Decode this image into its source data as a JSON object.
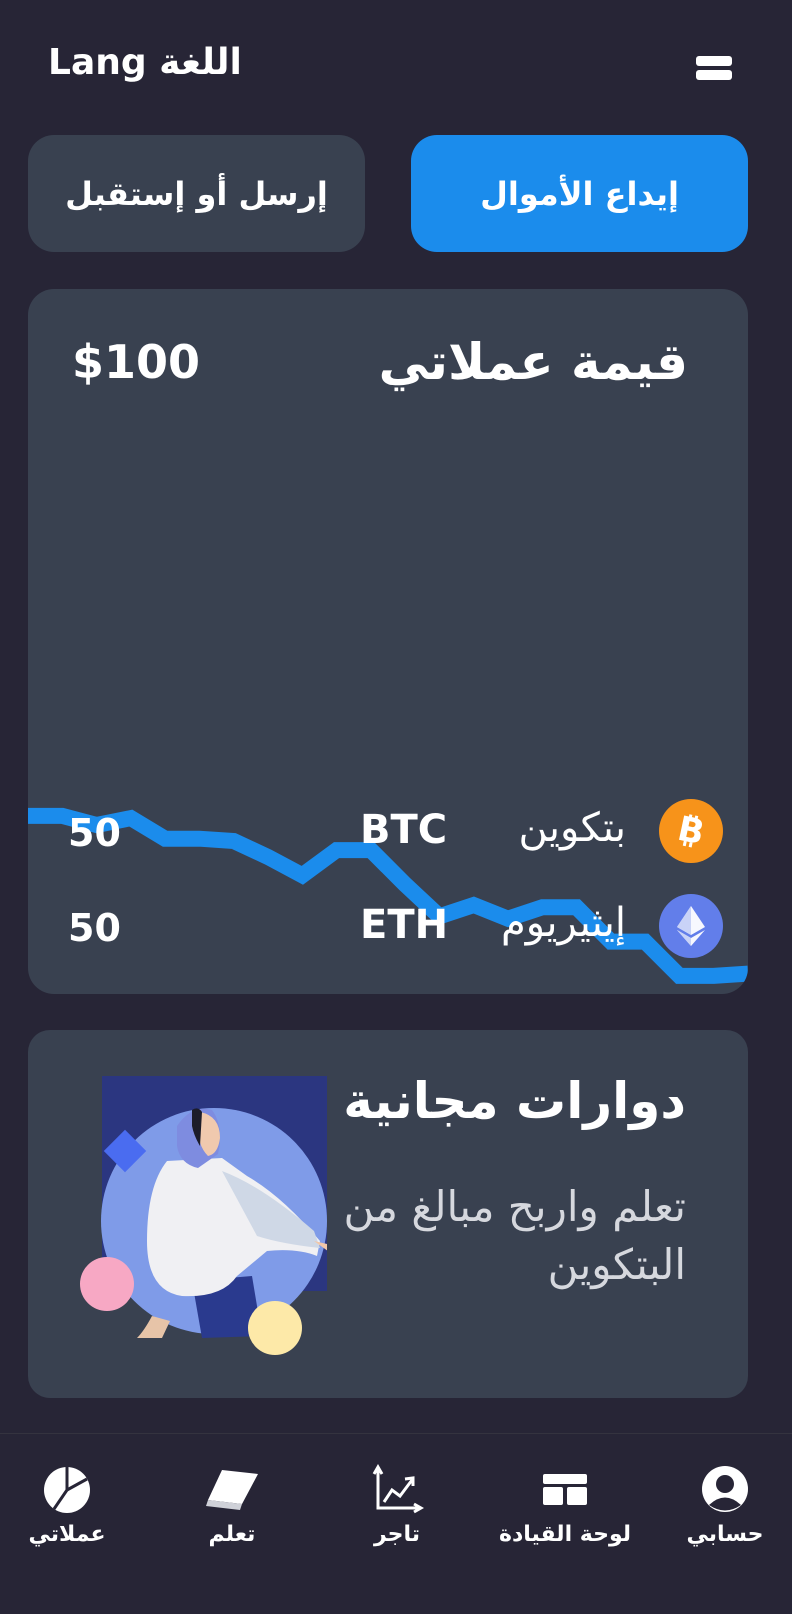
{
  "header": {
    "lang_label": "Lang  اللغة",
    "menu_icon": "hamburger-menu-icon"
  },
  "actions": {
    "send_receive_label": "إرسل أو إستقبل",
    "deposit_label": "إيداع الأموال"
  },
  "portfolio": {
    "title": "قيمة عملاتي",
    "value": "$100",
    "coins": [
      {
        "icon": "bitcoin-icon",
        "name": "بتكوين",
        "symbol": "BTC",
        "amount": "50",
        "color": "#f7931a"
      },
      {
        "icon": "ethereum-icon",
        "name": "إيثيريوم",
        "symbol": "ETH",
        "amount": "50",
        "color": "#627eea"
      }
    ]
  },
  "chart_data": {
    "type": "line",
    "title": "",
    "xlabel": "",
    "ylabel": "",
    "series": [
      {
        "values": [
          62,
          62,
          58,
          61,
          52,
          52,
          51,
          44,
          36,
          47,
          47,
          32,
          18,
          23,
          17,
          22,
          22,
          7,
          7,
          -8,
          -8,
          -7
        ]
      }
    ],
    "ylim": [
      -40,
      100
    ],
    "line_color": "#1b8cec",
    "grid": false,
    "axes_visible": false
  },
  "promo": {
    "title": "دوارات مجانية",
    "text": "تعلم واربح مبالغ من البتكوين",
    "illustration": "woman-illustration"
  },
  "bottom_nav": {
    "items": [
      {
        "key": "my-coins",
        "label": "عملاتي",
        "icon": "pie-chart-icon"
      },
      {
        "key": "learn",
        "label": "تعلم",
        "icon": "book-icon"
      },
      {
        "key": "trade",
        "label": "تاجر",
        "icon": "growth-chart-icon"
      },
      {
        "key": "dashboard",
        "label": "لوحة القيادة",
        "icon": "dashboard-icon"
      },
      {
        "key": "account",
        "label": "حسابي",
        "icon": "user-icon"
      }
    ]
  },
  "colors": {
    "background": "#272536",
    "card": "#394150",
    "accent": "#1b8cec"
  }
}
